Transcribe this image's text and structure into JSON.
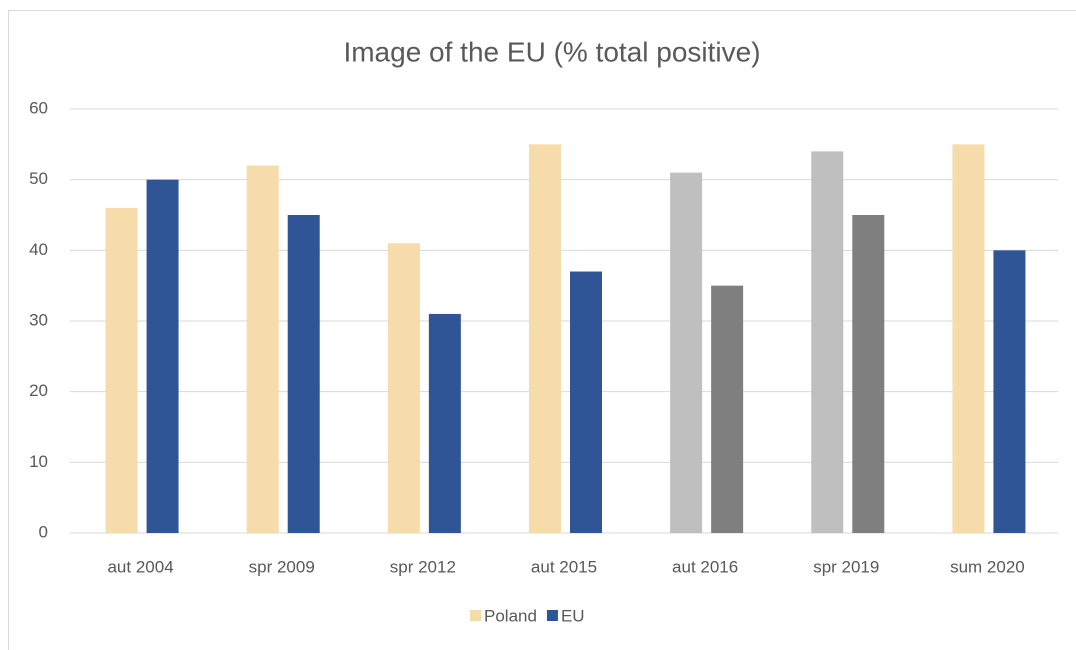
{
  "chart_data": {
    "type": "bar",
    "title": "Image of the EU (% total positive)",
    "categories": [
      "aut 2004",
      "spr 2009",
      "spr 2012",
      "aut 2015",
      "aut 2016",
      "spr 2019",
      "sum 2020"
    ],
    "series": [
      {
        "name": "Poland",
        "color": "#f6dcaa",
        "colors": [
          "#f6dcaa",
          "#f6dcaa",
          "#f6dcaa",
          "#f6dcaa",
          "#bfbfbf",
          "#bfbfbf",
          "#f6dcaa"
        ],
        "values": [
          46,
          52,
          41,
          55,
          51,
          54,
          55
        ]
      },
      {
        "name": "EU",
        "color": "#2f5597",
        "colors": [
          "#2f5597",
          "#2f5597",
          "#2f5597",
          "#2f5597",
          "#7f7f7f",
          "#7f7f7f",
          "#2f5597"
        ],
        "values": [
          50,
          45,
          31,
          37,
          35,
          45,
          40
        ]
      }
    ],
    "ylim": [
      0,
      60
    ],
    "yticks": [
      0,
      10,
      20,
      30,
      40,
      50,
      60
    ],
    "grid": true,
    "legend": "bottom"
  }
}
